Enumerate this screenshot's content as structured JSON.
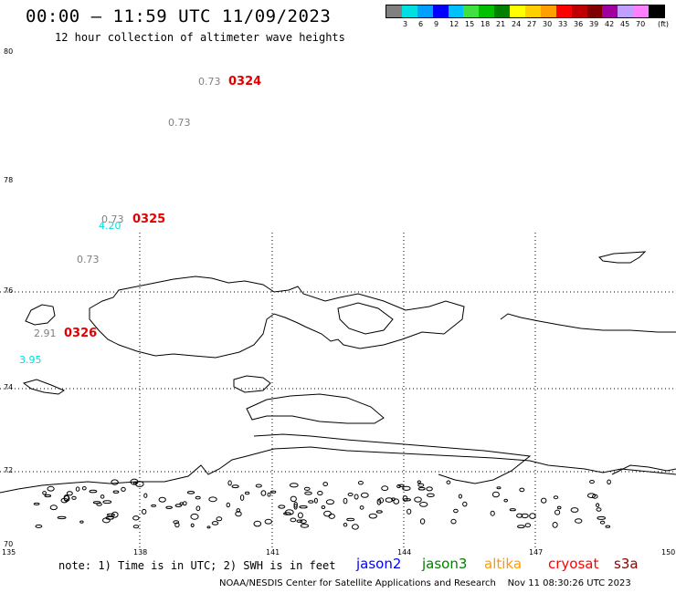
{
  "header": {
    "title": "00:00 – 11:59 UTC 11/09/2023",
    "subtitle": "12 hour collection of altimeter wave heights"
  },
  "legend": {
    "colors": [
      "#808080",
      "#00e0e0",
      "#00a0ff",
      "#0000ff",
      "#00c0ff",
      "#40e040",
      "#00c000",
      "#008000",
      "#ffff00",
      "#ffd000",
      "#ffa000",
      "#ff0000",
      "#c00000",
      "#800000",
      "#a000a0",
      "#c0a0ff",
      "#ff80ff",
      "#000000"
    ],
    "labels": [
      "3",
      "6",
      "9",
      "12",
      "15",
      "18",
      "21",
      "24",
      "27",
      "30",
      "33",
      "36",
      "39",
      "42",
      "45",
      "70"
    ],
    "unit": "(ft)"
  },
  "axes": {
    "lat_labels": [
      "80",
      "78",
      "76",
      "74",
      "72",
      "70"
    ],
    "lon_labels": [
      "135",
      "138",
      "141",
      "144",
      "147",
      "150"
    ]
  },
  "observations": [
    {
      "value": "0.73",
      "color": "#808080"
    },
    {
      "value": "0.73",
      "color": "#808080"
    },
    {
      "value": "0.73",
      "color": "#808080"
    },
    {
      "value": "4.20",
      "color": "#00e0e0"
    },
    {
      "value": "0.73",
      "color": "#808080"
    },
    {
      "value": "2.91",
      "color": "#808080"
    },
    {
      "value": "3.95",
      "color": "#00e0e0"
    }
  ],
  "pass_ids": [
    "0324",
    "0325",
    "0326"
  ],
  "footer": {
    "note": "note: 1) Time is in UTC; 2) SWH is in feet",
    "satellites": [
      {
        "name": "jason2",
        "color": "#0000ff"
      },
      {
        "name": "jason3",
        "color": "#008000"
      },
      {
        "name": "altika",
        "color": "#ff9900"
      },
      {
        "name": "cryosat",
        "color": "#ff0000"
      },
      {
        "name": "s3a",
        "color": "#8b0000"
      }
    ],
    "credit": "NOAA/NESDIS Center for Satellite Applications and Research",
    "timestamp": "Nov 11 08:30:26 UTC 2023"
  }
}
